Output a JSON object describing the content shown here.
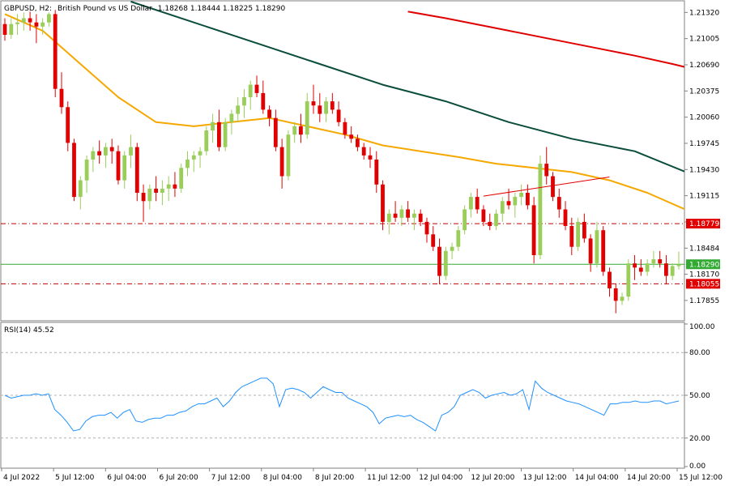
{
  "header": {
    "symbol": "GBPUSD, H2:",
    "description": "British Pound vs US Dollar",
    "ohlc": "1.18268 1.18444 1.18225 1.18290"
  },
  "rsi_label": "RSI(14) 45.52",
  "colors": {
    "bull": "#9acd5a",
    "bear": "#e00000",
    "ma_fast": "#f5a800",
    "ma_mid": "#0b4d3c",
    "ma_slow": "#e00000",
    "rsi_line": "#1e90ff",
    "hline_dash": "#c00000",
    "hline_current": "#33aa33",
    "trendline": "#e00000"
  },
  "chart_data": [
    {
      "type": "candlestick",
      "ylim": [
        1.1762,
        1.2145
      ],
      "price_ticks": [
        "1.21320",
        "1.21005",
        "1.20690",
        "1.20375",
        "1.20060",
        "1.19745",
        "1.19430",
        "1.19115",
        "1.18799",
        "1.18484",
        "1.18170",
        "1.17855"
      ],
      "time_labels": [
        "4 Jul 2022",
        "5 Jul 12:00",
        "6 Jul 04:00",
        "6 Jul 20:00",
        "7 Jul 12:00",
        "8 Jul 04:00",
        "8 Jul 20:00",
        "11 Jul 12:00",
        "12 Jul 04:00",
        "12 Jul 20:00",
        "13 Jul 12:00",
        "14 Jul 04:00",
        "14 Jul 20:00",
        "15 Jul 12:00"
      ],
      "levels": {
        "upper_dashed": 1.18779,
        "lower_dashed": 1.18055,
        "current": 1.1829
      },
      "level_labels": [
        "1.18779",
        "1.18290",
        "1.18055"
      ],
      "trendline": [
        [
          76,
          1.1911
        ],
        [
          96,
          1.1934
        ]
      ],
      "ohlc": [
        [
          1.2118,
          1.2125,
          1.2098,
          1.2105
        ],
        [
          1.2105,
          1.2125,
          1.21,
          1.2118
        ],
        [
          1.2118,
          1.213,
          1.2105,
          1.212
        ],
        [
          1.212,
          1.2132,
          1.211,
          1.2125
        ],
        [
          1.2125,
          1.2133,
          1.211,
          1.212
        ],
        [
          1.212,
          1.213,
          1.2095,
          1.2115
        ],
        [
          1.2115,
          1.2125,
          1.2105,
          1.212
        ],
        [
          1.212,
          1.2132,
          1.2115,
          1.213
        ],
        [
          1.213,
          1.2135,
          1.203,
          1.204
        ],
        [
          1.204,
          1.206,
          1.201,
          1.2018
        ],
        [
          1.2018,
          1.2025,
          1.1965,
          1.1975
        ],
        [
          1.1975,
          1.198,
          1.1905,
          1.191
        ],
        [
          1.191,
          1.1935,
          1.1895,
          1.193
        ],
        [
          1.193,
          1.196,
          1.1915,
          1.1955
        ],
        [
          1.1955,
          1.197,
          1.194,
          1.1965
        ],
        [
          1.1965,
          1.1978,
          1.195,
          1.196
        ],
        [
          1.196,
          1.1975,
          1.1945,
          1.197
        ],
        [
          1.197,
          1.198,
          1.195,
          1.1965
        ],
        [
          1.1965,
          1.1972,
          1.1925,
          1.193
        ],
        [
          1.193,
          1.1965,
          1.192,
          1.196
        ],
        [
          1.196,
          1.1985,
          1.1945,
          1.197
        ],
        [
          1.197,
          1.1975,
          1.1905,
          1.1915
        ],
        [
          1.1915,
          1.1925,
          1.188,
          1.1905
        ],
        [
          1.1905,
          1.1925,
          1.1895,
          1.192
        ],
        [
          1.192,
          1.1935,
          1.1905,
          1.1915
        ],
        [
          1.1915,
          1.193,
          1.19,
          1.192
        ],
        [
          1.192,
          1.1935,
          1.1905,
          1.1925
        ],
        [
          1.1925,
          1.194,
          1.191,
          1.192
        ],
        [
          1.192,
          1.195,
          1.1915,
          1.1945
        ],
        [
          1.1945,
          1.1965,
          1.1935,
          1.1955
        ],
        [
          1.1955,
          1.1965,
          1.194,
          1.196
        ],
        [
          1.196,
          1.197,
          1.1945,
          1.1965
        ],
        [
          1.1965,
          1.1995,
          1.196,
          1.199
        ],
        [
          1.199,
          1.201,
          1.1975,
          1.2
        ],
        [
          1.2,
          1.2015,
          1.1965,
          1.197
        ],
        [
          1.197,
          1.2005,
          1.1965,
          1.2
        ],
        [
          1.2,
          1.2015,
          1.1985,
          1.201
        ],
        [
          1.201,
          1.203,
          1.2,
          1.202
        ],
        [
          1.202,
          1.204,
          1.2005,
          1.203
        ],
        [
          1.203,
          1.205,
          1.2015,
          1.2045
        ],
        [
          1.2045,
          1.2056,
          1.203,
          1.2035
        ],
        [
          1.2035,
          1.205,
          1.201,
          1.2015
        ],
        [
          1.2015,
          1.202,
          1.1995,
          1.2005
        ],
        [
          1.2005,
          1.2015,
          1.1965,
          1.197
        ],
        [
          1.197,
          1.198,
          1.192,
          1.1935
        ],
        [
          1.1935,
          1.199,
          1.193,
          1.1985
        ],
        [
          1.1985,
          1.2,
          1.1975,
          1.1995
        ],
        [
          1.1995,
          1.201,
          1.1975,
          1.1985
        ],
        [
          1.1985,
          1.2035,
          1.198,
          1.2025
        ],
        [
          1.2025,
          1.2045,
          1.201,
          1.202
        ],
        [
          1.202,
          1.2035,
          1.2,
          1.201
        ],
        [
          1.201,
          1.203,
          1.2,
          1.2025
        ],
        [
          1.2025,
          1.2035,
          1.201,
          1.2015
        ],
        [
          1.2015,
          1.2025,
          1.1995,
          1.2
        ],
        [
          1.2,
          1.2005,
          1.198,
          1.1985
        ],
        [
          1.1985,
          1.1995,
          1.1975,
          1.198
        ],
        [
          1.198,
          1.1985,
          1.1965,
          1.197
        ],
        [
          1.197,
          1.1975,
          1.1955,
          1.196
        ],
        [
          1.196,
          1.197,
          1.1945,
          1.1955
        ],
        [
          1.1955,
          1.1965,
          1.1915,
          1.1925
        ],
        [
          1.1925,
          1.193,
          1.187,
          1.188
        ],
        [
          1.188,
          1.1895,
          1.1865,
          1.189
        ],
        [
          1.189,
          1.1905,
          1.188,
          1.1885
        ],
        [
          1.1885,
          1.19,
          1.1875,
          1.1895
        ],
        [
          1.1895,
          1.1905,
          1.188,
          1.1885
        ],
        [
          1.1885,
          1.1895,
          1.187,
          1.189
        ],
        [
          1.189,
          1.1895,
          1.1875,
          1.188
        ],
        [
          1.188,
          1.1885,
          1.1855,
          1.1865
        ],
        [
          1.1865,
          1.1875,
          1.1845,
          1.185
        ],
        [
          1.185,
          1.186,
          1.1805,
          1.1815
        ],
        [
          1.1815,
          1.185,
          1.181,
          1.1845
        ],
        [
          1.1845,
          1.1855,
          1.1835,
          1.185
        ],
        [
          1.185,
          1.1875,
          1.1845,
          1.187
        ],
        [
          1.187,
          1.19,
          1.1865,
          1.1895
        ],
        [
          1.1895,
          1.1915,
          1.1885,
          1.191
        ],
        [
          1.191,
          1.192,
          1.189,
          1.1895
        ],
        [
          1.1895,
          1.19,
          1.1875,
          1.188
        ],
        [
          1.188,
          1.189,
          1.187,
          1.1875
        ],
        [
          1.1875,
          1.1895,
          1.187,
          1.189
        ],
        [
          1.189,
          1.191,
          1.188,
          1.1905
        ],
        [
          1.1905,
          1.192,
          1.1895,
          1.19
        ],
        [
          1.19,
          1.1915,
          1.1885,
          1.191
        ],
        [
          1.191,
          1.1925,
          1.19,
          1.1915
        ],
        [
          1.1915,
          1.1925,
          1.1895,
          1.19
        ],
        [
          1.19,
          1.191,
          1.183,
          1.184
        ],
        [
          1.184,
          1.196,
          1.1835,
          1.195
        ],
        [
          1.195,
          1.197,
          1.1925,
          1.1935
        ],
        [
          1.1935,
          1.194,
          1.1905,
          1.191
        ],
        [
          1.191,
          1.192,
          1.1885,
          1.1895
        ],
        [
          1.1895,
          1.1905,
          1.187,
          1.1875
        ],
        [
          1.1875,
          1.1885,
          1.184,
          1.185
        ],
        [
          1.185,
          1.1885,
          1.1845,
          1.188
        ],
        [
          1.188,
          1.189,
          1.1855,
          1.186
        ],
        [
          1.186,
          1.1865,
          1.182,
          1.183
        ],
        [
          1.183,
          1.188,
          1.1825,
          1.187
        ],
        [
          1.187,
          1.1875,
          1.1815,
          1.182
        ],
        [
          1.182,
          1.1825,
          1.179,
          1.18
        ],
        [
          1.18,
          1.1805,
          1.177,
          1.1785
        ],
        [
          1.1785,
          1.1795,
          1.178,
          1.179
        ],
        [
          1.179,
          1.1835,
          1.1785,
          1.183
        ],
        [
          1.183,
          1.184,
          1.181,
          1.1825
        ],
        [
          1.1825,
          1.1835,
          1.1815,
          1.182
        ],
        [
          1.182,
          1.1835,
          1.1815,
          1.183
        ],
        [
          1.183,
          1.1845,
          1.1825,
          1.1835
        ],
        [
          1.1835,
          1.1845,
          1.1825,
          1.183
        ],
        [
          1.183,
          1.184,
          1.1805,
          1.1815
        ],
        [
          1.1815,
          1.183,
          1.181,
          1.18268
        ],
        [
          1.18268,
          1.18444,
          1.18225,
          1.1829
        ]
      ],
      "ma_fast": [
        [
          0,
          1.213
        ],
        [
          6,
          1.211
        ],
        [
          12,
          1.207
        ],
        [
          18,
          1.203
        ],
        [
          24,
          1.2
        ],
        [
          30,
          1.1995
        ],
        [
          36,
          1.2
        ],
        [
          42,
          1.2005
        ],
        [
          48,
          1.1995
        ],
        [
          54,
          1.1985
        ],
        [
          60,
          1.1972
        ],
        [
          66,
          1.1965
        ],
        [
          72,
          1.1958
        ],
        [
          78,
          1.195
        ],
        [
          84,
          1.1945
        ],
        [
          90,
          1.194
        ],
        [
          96,
          1.193
        ],
        [
          102,
          1.1915
        ],
        [
          108,
          1.1895
        ],
        [
          112,
          1.1876
        ]
      ],
      "ma_mid": [
        [
          20,
          1.2145
        ],
        [
          30,
          1.212
        ],
        [
          40,
          1.2095
        ],
        [
          50,
          1.207
        ],
        [
          60,
          1.2045
        ],
        [
          70,
          1.2025
        ],
        [
          80,
          1.2
        ],
        [
          90,
          1.198
        ],
        [
          100,
          1.1965
        ],
        [
          112,
          1.1928
        ]
      ],
      "ma_slow": [
        [
          64,
          1.2133
        ],
        [
          70,
          1.2125
        ],
        [
          80,
          1.211
        ],
        [
          90,
          1.2095
        ],
        [
          100,
          1.208
        ],
        [
          106,
          1.207
        ],
        [
          112,
          1.2059
        ]
      ]
    },
    {
      "type": "line",
      "ylim": [
        0,
        100
      ],
      "ticks": [
        "100.00",
        "80.00",
        "50.00",
        "20.00",
        "0.00"
      ],
      "dashed_levels": [
        80,
        50,
        20
      ],
      "values": [
        50,
        48,
        49,
        50,
        50,
        51,
        50,
        51,
        40,
        36,
        31,
        25,
        26,
        32,
        35,
        36,
        36,
        38,
        34,
        38,
        40,
        32,
        31,
        33,
        34,
        34,
        36,
        36,
        38,
        39,
        42,
        44,
        44,
        46,
        48,
        42,
        46,
        52,
        56,
        58,
        60,
        62,
        62,
        58,
        42,
        54,
        55,
        54,
        52,
        48,
        52,
        56,
        54,
        52,
        52,
        48,
        46,
        44,
        42,
        38,
        30,
        34,
        35,
        36,
        35,
        36,
        33,
        31,
        28,
        25,
        36,
        38,
        42,
        50,
        52,
        54,
        52,
        48,
        50,
        51,
        52,
        50,
        51,
        54,
        40,
        60,
        55,
        52,
        50,
        48,
        46,
        45,
        44,
        42,
        40,
        38,
        36,
        44,
        44,
        45,
        45,
        46,
        45,
        45,
        46,
        46,
        44,
        45,
        46
      ]
    }
  ]
}
